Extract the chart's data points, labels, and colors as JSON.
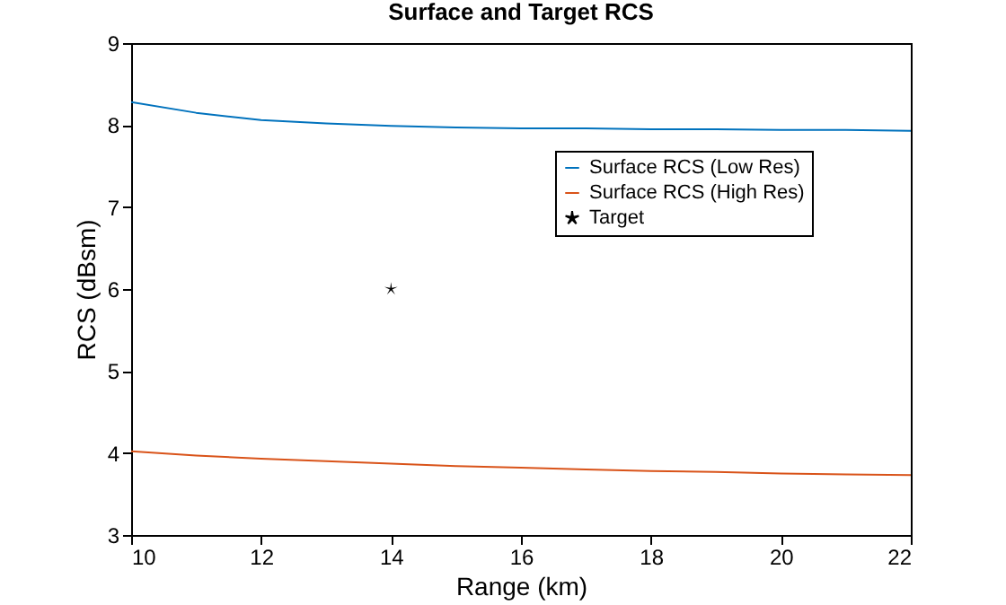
{
  "chart_data": {
    "type": "line",
    "title": "Surface and Target RCS",
    "xlabel": "Range (km)",
    "ylabel": "RCS (dBsm)",
    "xlim": [
      10,
      22
    ],
    "xticks": [
      10,
      12,
      14,
      16,
      18,
      20,
      22
    ],
    "ylim": [
      3,
      9
    ],
    "yticks": [
      3,
      4,
      5,
      6,
      7,
      8,
      9
    ],
    "grid": false,
    "legend": "top right",
    "series": [
      {
        "name": "Surface RCS (Low Res)",
        "color": "#0072bd",
        "marker": "none",
        "x": [
          10,
          11,
          12,
          13,
          14,
          15,
          16,
          17,
          18,
          19,
          20,
          21,
          22
        ],
        "values": [
          8.28,
          8.15,
          8.06,
          8.02,
          7.99,
          7.97,
          7.96,
          7.96,
          7.95,
          7.95,
          7.94,
          7.94,
          7.93
        ]
      },
      {
        "name": "Surface RCS (High Res)",
        "color": "#d95319",
        "marker": "none",
        "x": [
          10,
          11,
          12,
          13,
          14,
          15,
          16,
          17,
          18,
          19,
          20,
          21,
          22
        ],
        "values": [
          4.02,
          3.97,
          3.93,
          3.9,
          3.87,
          3.84,
          3.82,
          3.8,
          3.78,
          3.77,
          3.75,
          3.74,
          3.73
        ]
      },
      {
        "name": "Target",
        "type": "scatter",
        "color": "#000000",
        "marker": "star",
        "x": [
          14
        ],
        "values": [
          6
        ]
      }
    ]
  }
}
